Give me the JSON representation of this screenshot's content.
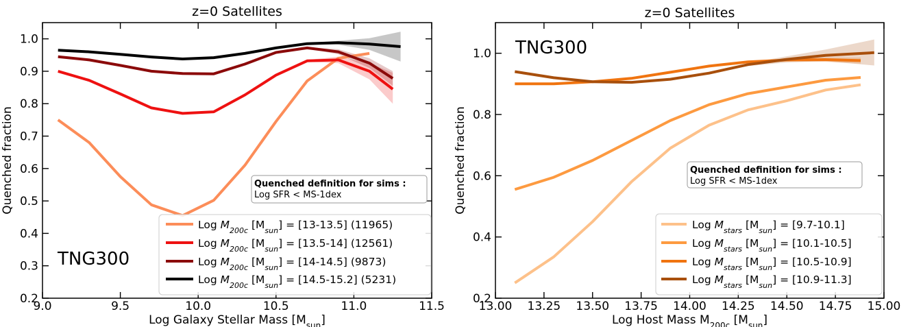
{
  "chart_data": [
    {
      "type": "line",
      "title": "z=0 Satellites",
      "xlabel": "Log Galaxy Stellar Mass [M",
      "xlabel_sub": "sun",
      "xlabel_end": "]",
      "ylabel": "Quenched fraction",
      "xlim": [
        9.0,
        11.5
      ],
      "ylim": [
        0.2,
        1.05
      ],
      "xticks": [
        9.0,
        9.5,
        10.0,
        10.5,
        11.0,
        11.5
      ],
      "xtick_labels": [
        "9.0",
        "9.5",
        "10.0",
        "10.5",
        "11.0",
        "11.5"
      ],
      "yticks": [
        0.2,
        0.3,
        0.4,
        0.5,
        0.6,
        0.7,
        0.8,
        0.9,
        1.0
      ],
      "ytick_labels": [
        "0.2",
        "0.3",
        "0.4",
        "0.5",
        "0.6",
        "0.7",
        "0.8",
        "0.9",
        "1.0"
      ],
      "annotation": "TNG300",
      "quench_box": {
        "title": "Quenched definition for sims :",
        "text": "Log SFR < MS-1dex"
      },
      "legend_position": "lower-right",
      "series": [
        {
          "legend": {
            "pre": "Log ",
            "var": "M",
            "sub": "200c",
            "bracket": " [M",
            "bsub": "sun",
            "post": "] = [13-13.5] (11965)"
          },
          "color": "#fc8d59",
          "x": [
            9.1,
            9.3,
            9.5,
            9.7,
            9.9,
            10.1,
            10.3,
            10.5,
            10.7,
            10.9,
            11.1
          ],
          "y": [
            0.75,
            0.68,
            0.575,
            0.488,
            0.455,
            0.502,
            0.61,
            0.745,
            0.87,
            0.94,
            0.955
          ],
          "band_upper": [],
          "band_lower": []
        },
        {
          "legend": {
            "pre": "Log ",
            "var": "M",
            "sub": "200c",
            "bracket": " [M",
            "bsub": "sun",
            "post": "] = [13.5-14] (12561)"
          },
          "color": "#ee1111",
          "x": [
            9.1,
            9.3,
            9.5,
            9.7,
            9.9,
            10.1,
            10.3,
            10.5,
            10.7,
            10.9,
            11.1,
            11.25
          ],
          "y": [
            0.9,
            0.872,
            0.83,
            0.787,
            0.77,
            0.775,
            0.827,
            0.888,
            0.932,
            0.935,
            0.9,
            0.845
          ],
          "band_upper": [
            0.9,
            0.872,
            0.83,
            0.787,
            0.77,
            0.775,
            0.827,
            0.888,
            0.935,
            0.945,
            0.925,
            0.895
          ],
          "band_lower": [
            0.9,
            0.872,
            0.83,
            0.787,
            0.77,
            0.775,
            0.827,
            0.888,
            0.929,
            0.925,
            0.875,
            0.8
          ]
        },
        {
          "legend": {
            "pre": "Log ",
            "var": "M",
            "sub": "200c",
            "bracket": " [M",
            "bsub": "sun",
            "post": "] = [14-14.5] (9873)"
          },
          "color": "#8b0a0a",
          "x": [
            9.1,
            9.3,
            9.5,
            9.7,
            9.9,
            10.1,
            10.3,
            10.5,
            10.7,
            10.9,
            11.1,
            11.25
          ],
          "y": [
            0.945,
            0.935,
            0.918,
            0.9,
            0.893,
            0.892,
            0.922,
            0.958,
            0.972,
            0.96,
            0.925,
            0.878
          ],
          "band_upper": [
            0.945,
            0.935,
            0.918,
            0.9,
            0.893,
            0.892,
            0.922,
            0.958,
            0.974,
            0.968,
            0.94,
            0.9
          ],
          "band_lower": [
            0.945,
            0.935,
            0.918,
            0.9,
            0.893,
            0.892,
            0.922,
            0.958,
            0.97,
            0.952,
            0.91,
            0.855
          ]
        },
        {
          "legend": {
            "pre": "Log ",
            "var": "M",
            "sub": "200c",
            "bracket": " [M",
            "bsub": "sun",
            "post": "] = [14.5-15.2] (5231)"
          },
          "color": "#000000",
          "x": [
            9.1,
            9.3,
            9.5,
            9.7,
            9.9,
            10.1,
            10.3,
            10.5,
            10.7,
            10.9,
            11.1,
            11.3
          ],
          "y": [
            0.965,
            0.96,
            0.952,
            0.944,
            0.938,
            0.942,
            0.955,
            0.972,
            0.985,
            0.988,
            0.984,
            0.976
          ],
          "band_upper": [
            0.965,
            0.96,
            0.952,
            0.944,
            0.938,
            0.942,
            0.955,
            0.972,
            0.987,
            0.994,
            1.002,
            1.022
          ],
          "band_lower": [
            0.965,
            0.96,
            0.952,
            0.944,
            0.938,
            0.942,
            0.955,
            0.972,
            0.983,
            0.982,
            0.966,
            0.93
          ]
        }
      ]
    },
    {
      "type": "line",
      "title": "z=0 Satellites",
      "xlabel": "Log Host Mass M",
      "xlabel_sub": "200c",
      "xlabel_end": " [M",
      "xlabel_sub2": "sun",
      "xlabel_end2": "]",
      "ylabel": "Quenched fraction",
      "xlim": [
        13.0,
        15.0
      ],
      "ylim": [
        0.2,
        1.1
      ],
      "xticks": [
        13.0,
        13.25,
        13.5,
        13.75,
        14.0,
        14.25,
        14.5,
        14.75,
        15.0
      ],
      "xtick_labels": [
        "13.00",
        "13.25",
        "13.50",
        "13.75",
        "14.00",
        "14.25",
        "14.50",
        "14.75",
        "15.00"
      ],
      "yticks": [
        0.2,
        0.4,
        0.6,
        0.8,
        1.0
      ],
      "ytick_labels": [
        "0.2",
        "0.4",
        "0.6",
        "0.8",
        "1.0"
      ],
      "annotation": "TNG300",
      "quench_box": {
        "title": "Quenched definition for sims :",
        "text": "Log SFR < MS-1dex"
      },
      "legend_position": "lower-right",
      "series": [
        {
          "legend": {
            "pre": "Log ",
            "var": "M",
            "sub": "stars",
            "bracket": " [M",
            "bsub": "sun",
            "post": "] = [9.7-10.1]"
          },
          "color": "#fdc18a",
          "x": [
            13.1,
            13.3,
            13.5,
            13.7,
            13.9,
            14.1,
            14.3,
            14.5,
            14.7,
            14.88
          ],
          "y": [
            0.25,
            0.335,
            0.45,
            0.58,
            0.69,
            0.765,
            0.815,
            0.845,
            0.88,
            0.897
          ],
          "band_upper": [],
          "band_lower": []
        },
        {
          "legend": {
            "pre": "Log ",
            "var": "M",
            "sub": "stars",
            "bracket": " [M",
            "bsub": "sun",
            "post": "] = [10.1-10.5]"
          },
          "color": "#fd9a40",
          "x": [
            13.1,
            13.3,
            13.5,
            13.7,
            13.9,
            14.1,
            14.3,
            14.5,
            14.7,
            14.88
          ],
          "y": [
            0.555,
            0.595,
            0.65,
            0.715,
            0.78,
            0.832,
            0.868,
            0.89,
            0.912,
            0.921
          ],
          "band_upper": [],
          "band_lower": []
        },
        {
          "legend": {
            "pre": "Log ",
            "var": "M",
            "sub": "stars",
            "bracket": " [M",
            "bsub": "sun",
            "post": "] = [10.5-10.9]"
          },
          "color": "#f07410",
          "x": [
            13.1,
            13.3,
            13.5,
            13.7,
            13.9,
            14.1,
            14.3,
            14.5,
            14.7,
            14.88
          ],
          "y": [
            0.9,
            0.9,
            0.907,
            0.918,
            0.938,
            0.958,
            0.972,
            0.978,
            0.979,
            0.976
          ],
          "band_upper": [
            0.9,
            0.9,
            0.907,
            0.918,
            0.938,
            0.958,
            0.974,
            0.982,
            0.986,
            0.986
          ],
          "band_lower": [
            0.9,
            0.9,
            0.907,
            0.918,
            0.938,
            0.958,
            0.97,
            0.974,
            0.972,
            0.966
          ]
        },
        {
          "legend": {
            "pre": "Log ",
            "var": "M",
            "sub": "stars",
            "bracket": " [M",
            "bsub": "sun",
            "post": "] = [10.9-11.3]"
          },
          "color": "#a84f0c",
          "x": [
            13.1,
            13.3,
            13.5,
            13.7,
            13.9,
            14.1,
            14.3,
            14.5,
            14.7,
            14.95
          ],
          "y": [
            0.94,
            0.92,
            0.907,
            0.905,
            0.915,
            0.935,
            0.963,
            0.98,
            0.993,
            1.002
          ],
          "band_upper": [
            0.94,
            0.92,
            0.907,
            0.905,
            0.915,
            0.935,
            0.968,
            0.99,
            1.012,
            1.045
          ],
          "band_lower": [
            0.94,
            0.92,
            0.907,
            0.905,
            0.915,
            0.935,
            0.958,
            0.97,
            0.974,
            0.96
          ]
        }
      ]
    }
  ]
}
